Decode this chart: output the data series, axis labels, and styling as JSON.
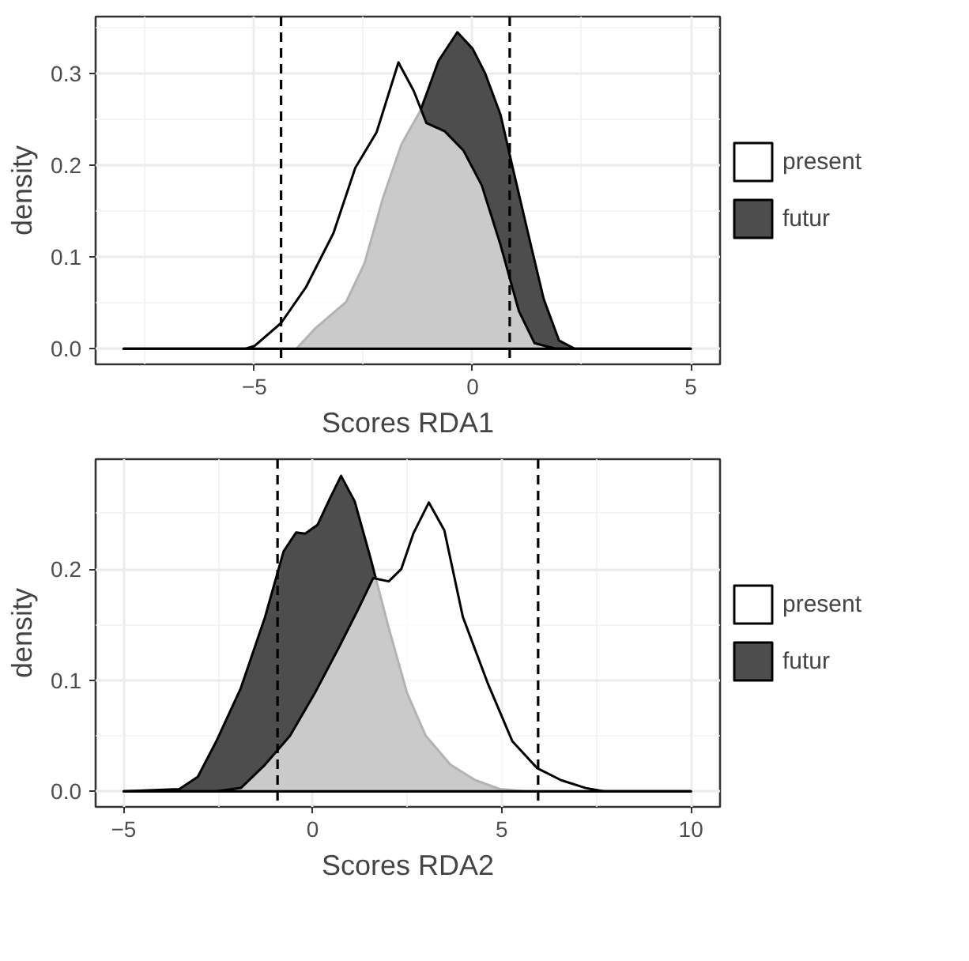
{
  "chart_data": [
    {
      "type": "area",
      "xlabel": "Scores RDA1",
      "ylabel": "density",
      "xlim": [
        -8.64,
        5.67
      ],
      "ylim": [
        -0.017,
        0.362
      ],
      "xticks": [
        -5,
        0,
        5
      ],
      "yticks": [
        {
          "value": 0,
          "label": "0.0"
        },
        0.1,
        0.2,
        0.3
      ],
      "grid": true,
      "legend": "right",
      "ref_lines": [
        {
          "axis": "x",
          "value": -4.39,
          "line_style": "dashed"
        },
        {
          "axis": "x",
          "value": 0.85,
          "line_style": "dashed"
        }
      ],
      "series": [
        {
          "name": "present",
          "color": "#ffffff",
          "x": [
            -8,
            -5.2,
            -5,
            -4.39,
            -3.82,
            -3.19,
            -2.69,
            -2.2,
            -1.7,
            -1.35,
            -1.06,
            -0.64,
            -0.21,
            0.21,
            0.64,
            1.06,
            1.42,
            1.9,
            5
          ],
          "values": [
            0,
            0,
            0.003,
            0.028,
            0.067,
            0.126,
            0.197,
            0.236,
            0.312,
            0.281,
            0.246,
            0.237,
            0.216,
            0.178,
            0.113,
            0.041,
            0.006,
            0,
            0
          ]
        },
        {
          "name": "futur",
          "color": "#4d4d4d",
          "x": [
            -8,
            -4.04,
            -3.61,
            -2.9,
            -2.48,
            -2.05,
            -1.63,
            -1.2,
            -0.78,
            -0.35,
            0,
            0.28,
            0.64,
            0.92,
            1.27,
            1.63,
            1.98,
            2.34,
            5
          ],
          "values": [
            0,
            0,
            0.022,
            0.051,
            0.093,
            0.165,
            0.223,
            0.259,
            0.314,
            0.345,
            0.327,
            0.301,
            0.255,
            0.197,
            0.126,
            0.054,
            0.009,
            0,
            0
          ]
        }
      ]
    },
    {
      "type": "area",
      "xlabel": "Scores RDA2",
      "ylabel": "density",
      "xlim": [
        -5.74,
        10.77
      ],
      "ylim": [
        -0.014,
        0.299
      ],
      "xticks": [
        -5,
        0,
        5,
        10
      ],
      "yticks": [
        {
          "value": 0,
          "label": "0.0"
        },
        0.1,
        0.2
      ],
      "grid": true,
      "legend": "right",
      "ref_lines": [
        {
          "axis": "x",
          "value": -0.93,
          "line_style": "dashed"
        },
        {
          "axis": "x",
          "value": 5.96,
          "line_style": "dashed"
        }
      ],
      "series": [
        {
          "name": "present",
          "color": "#ffffff",
          "x": [
            -5,
            -2.55,
            -1.9,
            -1.26,
            -0.6,
            0.05,
            0.7,
            1.19,
            1.6,
            2.01,
            2.34,
            2.66,
            3.07,
            3.48,
            3.97,
            4.62,
            5.28,
            5.93,
            6.57,
            7.22,
            7.71,
            10
          ],
          "values": [
            0,
            0,
            0.003,
            0.024,
            0.05,
            0.088,
            0.13,
            0.163,
            0.192,
            0.189,
            0.2,
            0.232,
            0.26,
            0.235,
            0.157,
            0.098,
            0.045,
            0.021,
            0.01,
            0.003,
            0,
            0
          ]
        },
        {
          "name": "futur",
          "color": "#4d4d4d",
          "x": [
            -5,
            -3.53,
            -3.04,
            -2.55,
            -1.9,
            -1.26,
            -0.77,
            -0.44,
            -0.2,
            0.13,
            0.46,
            0.75,
            1.11,
            1.52,
            2.01,
            2.5,
            2.99,
            3.64,
            4.3,
            4.95,
            5.6,
            10
          ],
          "values": [
            0,
            0.002,
            0.013,
            0.045,
            0.093,
            0.157,
            0.216,
            0.233,
            0.232,
            0.24,
            0.264,
            0.284,
            0.261,
            0.211,
            0.147,
            0.088,
            0.05,
            0.024,
            0.01,
            0.002,
            0,
            0
          ]
        }
      ]
    }
  ]
}
